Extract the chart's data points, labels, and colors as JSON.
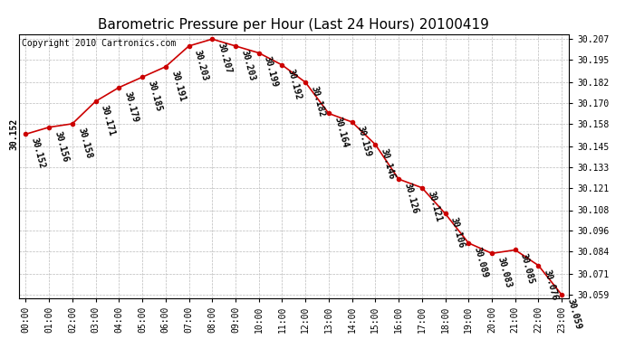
{
  "title": "Barometric Pressure per Hour (Last 24 Hours) 20100419",
  "copyright": "Copyright 2010 Cartronics.com",
  "hours": [
    "00:00",
    "01:00",
    "02:00",
    "03:00",
    "04:00",
    "05:00",
    "06:00",
    "07:00",
    "08:00",
    "09:00",
    "10:00",
    "11:00",
    "12:00",
    "13:00",
    "14:00",
    "15:00",
    "16:00",
    "17:00",
    "18:00",
    "19:00",
    "20:00",
    "21:00",
    "22:00",
    "23:00"
  ],
  "values": [
    30.152,
    30.156,
    30.158,
    30.171,
    30.179,
    30.185,
    30.191,
    30.203,
    30.207,
    30.203,
    30.199,
    30.192,
    30.182,
    30.164,
    30.159,
    30.146,
    30.126,
    30.121,
    30.106,
    30.089,
    30.083,
    30.085,
    30.076,
    30.059
  ],
  "line_color": "#cc0000",
  "marker_color": "#cc0000",
  "bg_color": "#ffffff",
  "grid_color": "#bbbbbb",
  "ylim_min": 30.057,
  "ylim_max": 30.21,
  "yticks_right": [
    30.207,
    30.195,
    30.182,
    30.17,
    30.158,
    30.145,
    30.133,
    30.121,
    30.108,
    30.096,
    30.084,
    30.071,
    30.059
  ],
  "title_fontsize": 11,
  "annot_fontsize": 7,
  "tick_fontsize": 7,
  "copyright_fontsize": 7
}
